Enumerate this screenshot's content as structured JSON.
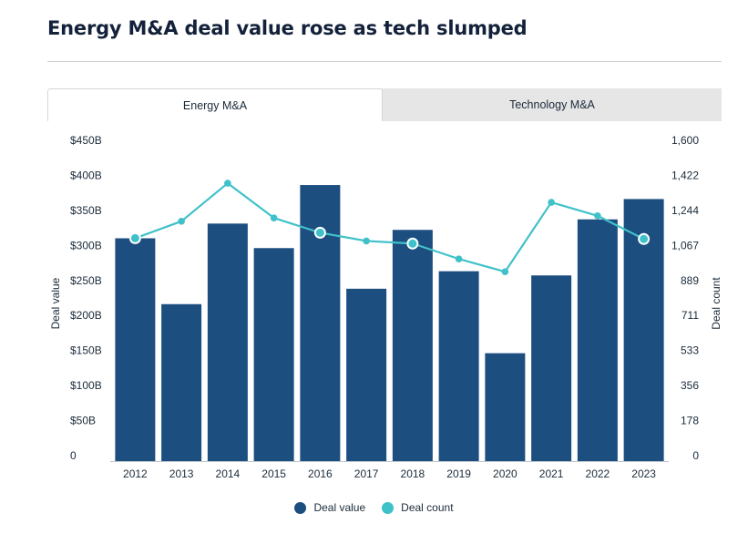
{
  "title": "Energy M&A deal value rose as tech slumped",
  "tabs": [
    {
      "label": "Energy M&A",
      "active": true
    },
    {
      "label": "Technology M&A",
      "active": false
    }
  ],
  "legend": [
    {
      "label": "Deal value",
      "color": "#1d4e80"
    },
    {
      "label": "Deal count",
      "color": "#3fc1c9"
    }
  ],
  "chart_data": {
    "type": "bar",
    "categories": [
      "2012",
      "2013",
      "2014",
      "2015",
      "2016",
      "2017",
      "2018",
      "2019",
      "2020",
      "2021",
      "2022",
      "2023"
    ],
    "series": [
      {
        "name": "Deal value",
        "type": "bar",
        "axis": "left",
        "values": [
          318,
          224,
          339,
          304,
          394,
          246,
          330,
          271,
          154,
          265,
          345,
          374
        ]
      },
      {
        "name": "Deal count",
        "type": "line",
        "axis": "right",
        "values": [
          1131,
          1217,
          1410,
          1234,
          1159,
          1117,
          1104,
          1026,
          961,
          1313,
          1245,
          1127
        ]
      }
    ],
    "ylabel": "Deal value",
    "ylabel_right": "Deal count",
    "ylim": [
      0,
      450
    ],
    "ylim_right": [
      0,
      1600
    ],
    "yticks": [
      "0",
      "$50B",
      "$100B",
      "$150B",
      "$200B",
      "$250B",
      "$300B",
      "$350B",
      "$400B",
      "$450B"
    ],
    "yticks_right": [
      "0",
      "178",
      "356",
      "533",
      "711",
      "889",
      "1,067",
      "1,244",
      "1,422",
      "1,600"
    ],
    "colors": {
      "bar": "#1d4e80",
      "line": "#3fc1c9"
    },
    "grid": false,
    "legend_position": "bottom-center"
  }
}
